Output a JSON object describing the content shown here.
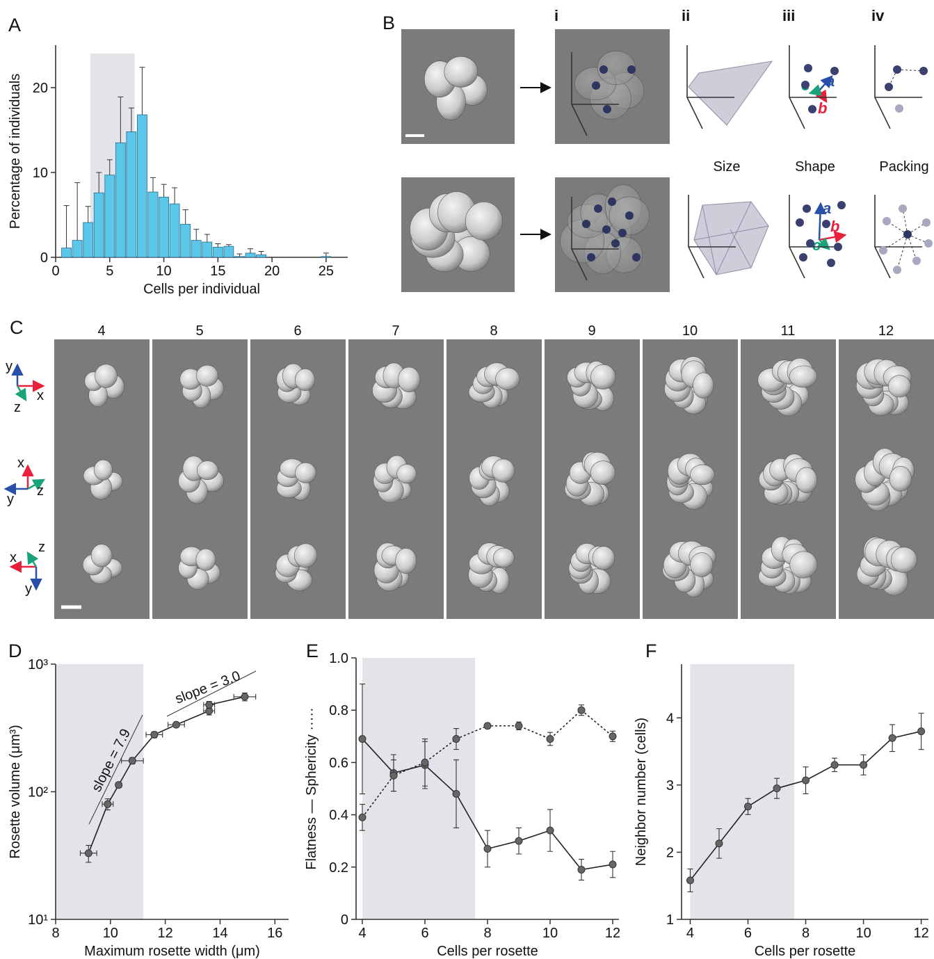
{
  "panel_labels": [
    "A",
    "B",
    "C",
    "D",
    "E",
    "F"
  ],
  "diagram_b": {
    "steps": [
      "i",
      "ii",
      "iii",
      "iv"
    ],
    "measures": [
      "Size",
      "Shape",
      "Packing"
    ],
    "axis_names": [
      "a",
      "b",
      "c"
    ]
  },
  "gallery_c": {
    "columns": [
      "4",
      "5",
      "6",
      "7",
      "8",
      "9",
      "10",
      "11",
      "12"
    ],
    "axes": [
      "x",
      "y",
      "z"
    ]
  },
  "chart_data": [
    {
      "type": "bar",
      "xlabel": "Cells per individual",
      "ylabel": "Percentage of individuals",
      "color": "#5bc5ea",
      "x": [
        1,
        2,
        3,
        4,
        5,
        6,
        7,
        8,
        9,
        10,
        11,
        12,
        13,
        14,
        15,
        16,
        17,
        18,
        19,
        20,
        21,
        22,
        23,
        24,
        25
      ],
      "values": [
        1.1,
        2.0,
        4.1,
        7.6,
        9.7,
        13.5,
        14.8,
        16.8,
        7.7,
        7.1,
        6.3,
        3.9,
        2.0,
        1.8,
        1.2,
        1.3,
        0.1,
        0.5,
        0.3,
        0,
        0,
        0,
        0,
        0,
        0.1
      ],
      "errors": [
        5,
        6.8,
        1.9,
        2.4,
        1.8,
        5.4,
        2.8,
        5.6,
        1.7,
        1.5,
        1.9,
        1.7,
        1.3,
        0.9,
        0.4,
        0.2,
        0.3,
        0.5,
        0.4,
        0,
        0,
        0,
        0,
        0,
        0.4
      ],
      "xlim": [
        0,
        27
      ],
      "ylim": [
        0,
        25
      ],
      "xticks": [
        0,
        5,
        10,
        15,
        20,
        25
      ],
      "yticks": [
        0,
        10,
        20
      ],
      "shaded_range": [
        3.2,
        7.3
      ]
    },
    {
      "type": "line",
      "xlabel": "Maximum rosette width (μm)",
      "ylabel": "Rosette volume (μm³)",
      "ylog": true,
      "x": [
        9.2,
        9.9,
        10.3,
        10.8,
        11.6,
        12.4,
        13.6,
        13.6,
        14.9
      ],
      "series": [
        {
          "color": "#666666",
          "values": [
            33,
            80,
            113,
            175,
            280,
            335,
            430,
            480,
            555
          ],
          "errors": [
            5,
            8,
            5,
            10,
            15,
            15,
            30,
            30,
            40
          ],
          "xerr": [
            0.3,
            0.2,
            0.1,
            0.4,
            0.3,
            0.3,
            0.2,
            0.2,
            0.4
          ]
        }
      ],
      "xlim": [
        8,
        16.5
      ],
      "ylim": [
        10,
        1000
      ],
      "xticks": [
        8,
        10,
        12,
        14,
        16
      ],
      "yticks": [
        {
          "value": 10,
          "label": "10¹"
        },
        {
          "value": 100,
          "label": "10²"
        },
        {
          "value": 1000,
          "label": "10³"
        }
      ],
      "shaded_range": [
        8,
        11.2
      ],
      "annotations": [
        "slope = 7.9",
        "slope = 3.0"
      ]
    },
    {
      "type": "line",
      "xlabel": "Cells per rosette",
      "ylabel": "Flatness —     Sphericity ·····",
      "x": [
        4,
        5,
        6,
        7,
        8,
        9,
        10,
        11,
        12
      ],
      "series": [
        {
          "color": "#666666",
          "values": [
            0.69,
            0.56,
            0.59,
            0.48,
            0.27,
            0.3,
            0.34,
            0.19,
            0.21
          ],
          "errors": [
            0.21,
            0.07,
            0.09,
            0.13,
            0.07,
            0.05,
            0.08,
            0.04,
            0.05
          ]
        },
        {
          "color": "#666666",
          "dash": "dotted",
          "values": [
            0.39,
            0.55,
            0.6,
            0.69,
            0.74,
            0.74,
            0.69,
            0.8,
            0.7
          ],
          "errors": [
            0.05,
            0.06,
            0.09,
            0.04,
            0.01,
            0.015,
            0.025,
            0.02,
            0.02
          ]
        }
      ],
      "xlim": [
        3.8,
        12.2
      ],
      "ylim": [
        0,
        1
      ],
      "xticks": [
        4,
        6,
        8,
        10,
        12
      ],
      "yticks": [
        0,
        0.2,
        0.4,
        0.6,
        0.8,
        {
          "value": 1,
          "label": "1.0"
        }
      ],
      "shaded_range": [
        4,
        7.6
      ]
    },
    {
      "type": "line",
      "xlabel": "Cells per rosette",
      "ylabel": "Neighbor number (cells)",
      "x": [
        4,
        5,
        6,
        7,
        8,
        9,
        10,
        11,
        12
      ],
      "series": [
        {
          "color": "#666666",
          "values": [
            1.58,
            2.13,
            2.68,
            2.95,
            3.07,
            3.3,
            3.3,
            3.7,
            3.8
          ],
          "errors": [
            0.17,
            0.22,
            0.12,
            0.15,
            0.2,
            0.1,
            0.15,
            0.2,
            0.27
          ]
        }
      ],
      "xlim": [
        3.7,
        12.25
      ],
      "ylim": [
        1,
        4.8
      ],
      "xticks": [
        4,
        6,
        8,
        10,
        12
      ],
      "yticks": [
        1,
        2,
        3,
        4
      ],
      "shaded_range": [
        4,
        7.6
      ]
    }
  ]
}
